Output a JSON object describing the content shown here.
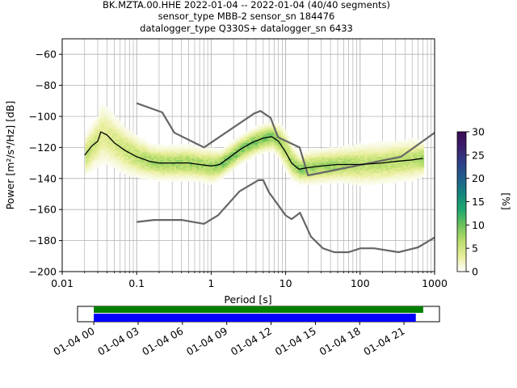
{
  "title_lines": [
    "BK.MZTA.00.HHE   2022-01-04 -- 2022-01-04  (40/40 segments)",
    "sensor_type MBB-2 sensor_sn 184476",
    "datalogger_type Q330S+ datalogger_sn 6433"
  ],
  "chart_data": {
    "type": "heatmap",
    "x_scale": "log",
    "xlabel": "Period [s]",
    "ylabel": "Power [m²/s⁴/Hz] [dB]",
    "xlim": [
      0.01,
      1000
    ],
    "ylim": [
      -200,
      -50
    ],
    "xticks": [
      {
        "value": 0.01,
        "label": "0.01"
      },
      {
        "value": 0.1,
        "label": "0.1"
      },
      {
        "value": 1,
        "label": "1"
      },
      {
        "value": 10,
        "label": "10"
      },
      {
        "value": 100,
        "label": "100"
      },
      {
        "value": 1000,
        "label": "1000"
      }
    ],
    "yticks": [
      -60,
      -80,
      -100,
      -120,
      -140,
      -160,
      -180,
      -200
    ],
    "grid": true,
    "colorbar": {
      "label": "[%]",
      "range": [
        0,
        30
      ],
      "ticks": [
        0,
        5,
        10,
        15,
        20,
        25,
        30
      ],
      "colormap": "pqlx",
      "stops": [
        "#ffffff",
        "#e9ee9a",
        "#b7dd6b",
        "#6cc25d",
        "#1ea870",
        "#14867d",
        "#1f5f8c",
        "#2f3f89",
        "#3b1f6e",
        "#3b0a52"
      ]
    },
    "mean_curve": {
      "color": "#000000",
      "points": [
        [
          0.02,
          -125
        ],
        [
          0.025,
          -119
        ],
        [
          0.03,
          -116
        ],
        [
          0.033,
          -110
        ],
        [
          0.04,
          -112
        ],
        [
          0.05,
          -117
        ],
        [
          0.07,
          -122
        ],
        [
          0.1,
          -126
        ],
        [
          0.15,
          -129
        ],
        [
          0.2,
          -130
        ],
        [
          0.3,
          -130
        ],
        [
          0.5,
          -130
        ],
        [
          0.7,
          -131
        ],
        [
          1,
          -132
        ],
        [
          1.3,
          -131
        ],
        [
          1.7,
          -127
        ],
        [
          2.5,
          -121
        ],
        [
          3.5,
          -117
        ],
        [
          5,
          -114
        ],
        [
          6.5,
          -113
        ],
        [
          8,
          -116
        ],
        [
          10,
          -123
        ],
        [
          12,
          -130
        ],
        [
          15,
          -134
        ],
        [
          20,
          -133
        ],
        [
          30,
          -132
        ],
        [
          50,
          -131
        ],
        [
          100,
          -131
        ],
        [
          200,
          -130
        ],
        [
          300,
          -129
        ],
        [
          500,
          -128
        ],
        [
          700,
          -127
        ]
      ]
    },
    "noise_model_high": {
      "color": "#666666",
      "points": [
        [
          0.1,
          -91.5
        ],
        [
          0.22,
          -97.4
        ],
        [
          0.32,
          -110.5
        ],
        [
          0.8,
          -120
        ],
        [
          3.8,
          -98
        ],
        [
          4.6,
          -96.5
        ],
        [
          6.3,
          -101
        ],
        [
          7.9,
          -113.5
        ],
        [
          15.4,
          -120
        ],
        [
          20,
          -138
        ],
        [
          354.8,
          -126
        ],
        [
          1000,
          -110.5
        ]
      ]
    },
    "noise_model_low": {
      "color": "#666666",
      "points": [
        [
          0.1,
          -168
        ],
        [
          0.17,
          -166.7
        ],
        [
          0.4,
          -166.7
        ],
        [
          0.8,
          -169.2
        ],
        [
          1.24,
          -163.7
        ],
        [
          2.4,
          -148.3
        ],
        [
          4.3,
          -141.1
        ],
        [
          5,
          -141.1
        ],
        [
          6,
          -149
        ],
        [
          10,
          -163.8
        ],
        [
          12,
          -166.2
        ],
        [
          15.6,
          -162.1
        ],
        [
          21.9,
          -177.5
        ],
        [
          31.6,
          -185
        ],
        [
          45,
          -187.5
        ],
        [
          70,
          -187.5
        ],
        [
          101,
          -185
        ],
        [
          154,
          -185
        ],
        [
          328,
          -187.5
        ],
        [
          600,
          -184.4
        ],
        [
          1000,
          -178
        ]
      ]
    },
    "distribution_band": {
      "description_free": true,
      "points": [
        [
          0.02,
          -125,
          6
        ],
        [
          0.025,
          -119,
          7
        ],
        [
          0.03,
          -115,
          8
        ],
        [
          0.033,
          -111,
          10
        ],
        [
          0.04,
          -113,
          9
        ],
        [
          0.05,
          -117,
          8
        ],
        [
          0.07,
          -122,
          7
        ],
        [
          0.1,
          -126,
          6
        ],
        [
          0.15,
          -129,
          5
        ],
        [
          0.2,
          -130,
          5
        ],
        [
          0.3,
          -130,
          5
        ],
        [
          0.5,
          -130,
          5
        ],
        [
          0.7,
          -131,
          5
        ],
        [
          1,
          -132,
          5
        ],
        [
          1.3,
          -131,
          4
        ],
        [
          1.7,
          -127,
          4
        ],
        [
          2.5,
          -121,
          4
        ],
        [
          3.5,
          -117,
          4
        ],
        [
          5,
          -114,
          4
        ],
        [
          6.5,
          -113,
          4
        ],
        [
          8,
          -116,
          5
        ],
        [
          10,
          -123,
          6
        ],
        [
          12,
          -130,
          5
        ],
        [
          15,
          -134,
          4
        ],
        [
          20,
          -133,
          5
        ],
        [
          30,
          -132,
          5
        ],
        [
          50,
          -131,
          5
        ],
        [
          100,
          -131,
          6
        ],
        [
          200,
          -130,
          6
        ],
        [
          300,
          -129,
          6
        ],
        [
          500,
          -128,
          6
        ],
        [
          700,
          -127,
          5
        ]
      ]
    }
  },
  "timeline": {
    "xticks": [
      "01-04 00",
      "01-04 03",
      "01-04 06",
      "01-04 09",
      "01-04 12",
      "01-04 15",
      "01-04 18",
      "01-04 21"
    ],
    "bars": [
      {
        "color": "#008000",
        "start_hour": 0,
        "end_hour": 22.3
      },
      {
        "color": "#0000ff",
        "start_hour": 0,
        "end_hour": 21.8
      }
    ],
    "range_hours": [
      -1.1,
      23.4
    ]
  }
}
